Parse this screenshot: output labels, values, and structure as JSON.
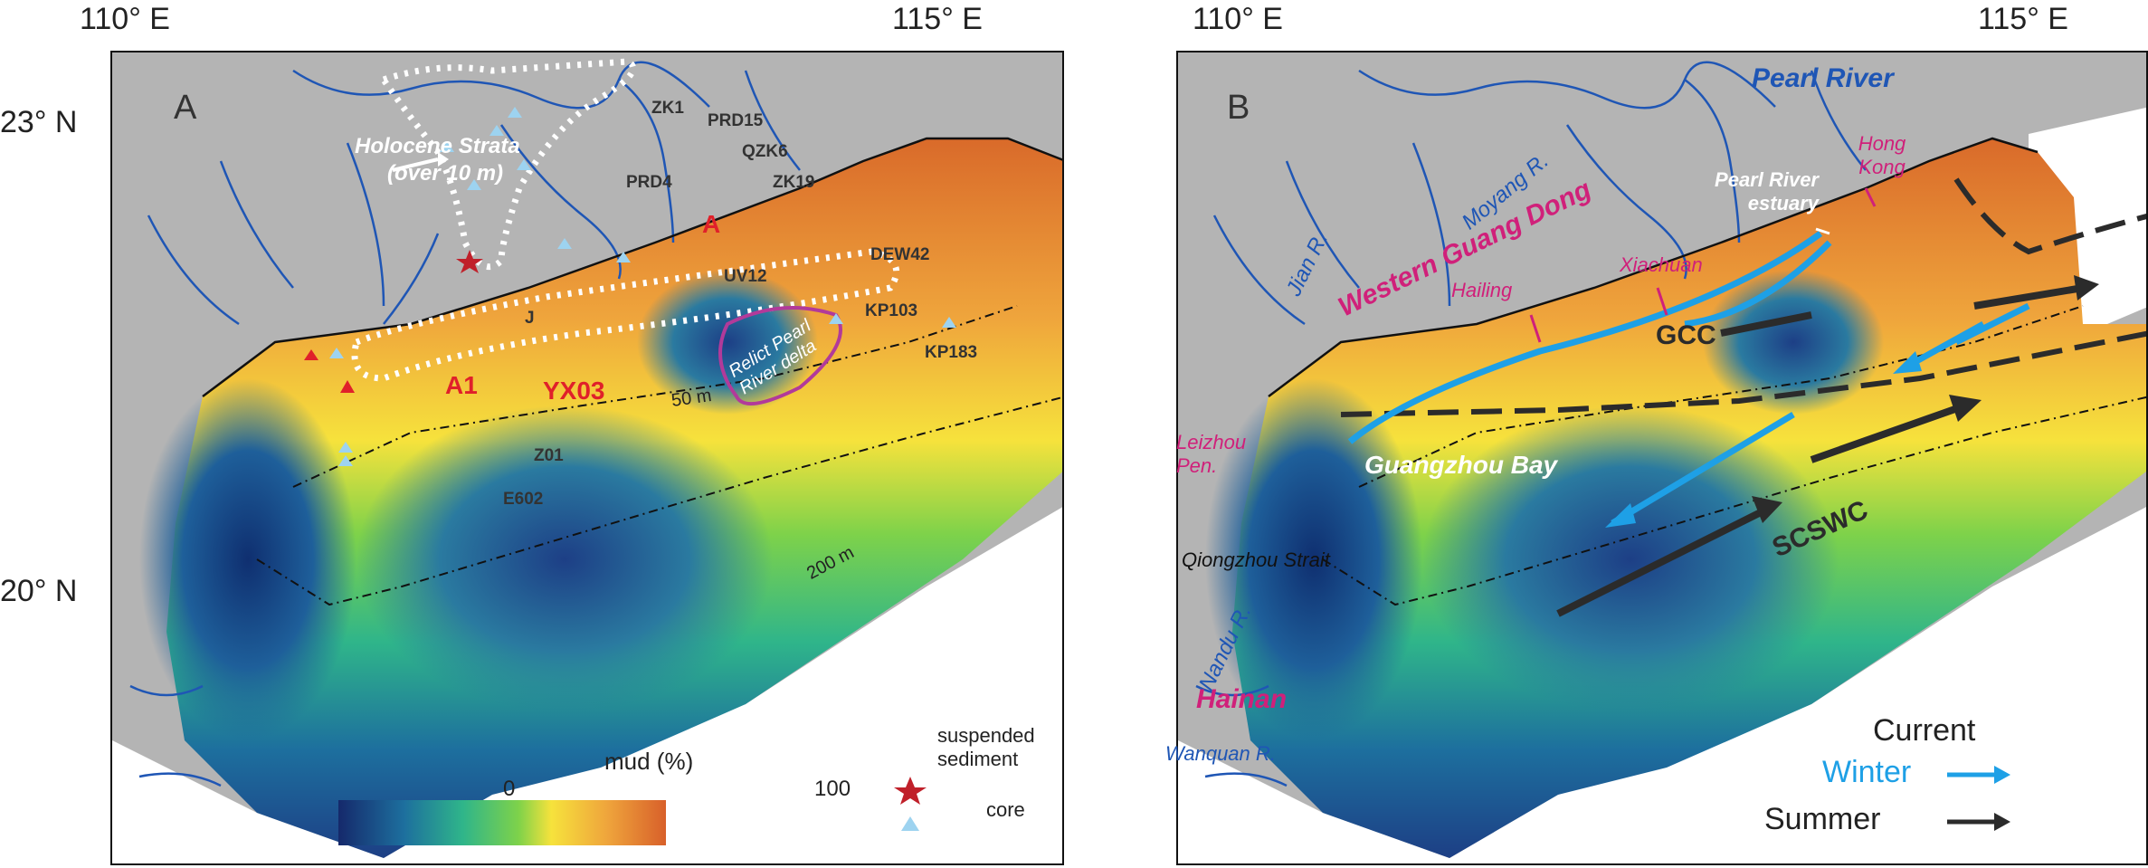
{
  "panel_a": {
    "letter": "A",
    "lon_labels": [
      "110° E",
      "115° E"
    ],
    "lat_labels": [
      "23° N",
      "20° N"
    ],
    "sites": [
      "ZK1",
      "PRD15",
      "QZK6",
      "PRD4",
      "ZK19",
      "UV12",
      "DEW42",
      "KP103",
      "KP183",
      "J",
      "Z01",
      "E602"
    ],
    "red_sites": [
      "A",
      "A1"
    ],
    "core_name": "YX03",
    "holocene_label_line1": "Holocene Strata",
    "holocene_label_line2": "(over 10 m)",
    "relict_label": "Relict Pearl River delta",
    "isobath_50": "50 m",
    "isobath_200": "200 m",
    "colorbar": {
      "title": "mud (%)",
      "min": "0",
      "max": "100"
    },
    "legend": {
      "suspended": "suspended sediment",
      "core": "core"
    }
  },
  "panel_b": {
    "letter": "B",
    "lon_labels": [
      "110° E",
      "115° E"
    ],
    "rivers": [
      "Pearl River",
      "Moyang R.",
      "Jian R.",
      "Nandu R.",
      "Wanquan R."
    ],
    "places_pink": [
      "Hong Kong",
      "Xiachuan",
      "Hailing",
      "Leizhou Pen.",
      "Western Guang Dong",
      "Hainan"
    ],
    "pearl_estuary": "Pearl River estuary",
    "guangzhou_bay": "Guangzhou Bay",
    "qiongzhou": "Qiongzhou Strait",
    "currents": [
      "GCC",
      "SCSWC"
    ],
    "legend": {
      "title": "Current",
      "winter": "Winter",
      "summer": "Summer"
    }
  },
  "colors": {
    "land": "#b4b4b4",
    "river": "#1f56b5",
    "winter": "#1ea0e6",
    "summer": "#2b2b2b",
    "label_red": "#e0202a",
    "label_pink": "#d0207a"
  }
}
